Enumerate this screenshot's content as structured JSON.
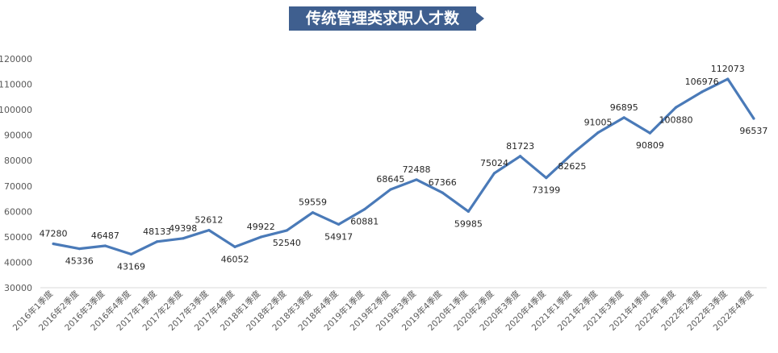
{
  "chart_data": {
    "type": "line",
    "title": "传统管理类求职人才数",
    "xlabel": "",
    "ylabel": "",
    "ylim": [
      30000,
      120000
    ],
    "yticks": [
      30000,
      40000,
      50000,
      60000,
      70000,
      80000,
      90000,
      100000,
      110000,
      120000
    ],
    "grid": false,
    "legend": "none",
    "line_color": "#4a7ab8",
    "categories": [
      "2016年1季度",
      "2016年2季度",
      "2016年3季度",
      "2016年4季度",
      "2017年1季度",
      "2017年2季度",
      "2017年3季度",
      "2017年4季度",
      "2018年1季度",
      "2018年2季度",
      "2018年3季度",
      "2018年4季度",
      "2019年1季度",
      "2019年2季度",
      "2019年3季度",
      "2019年4季度",
      "2020年1季度",
      "2020年2季度",
      "2020年3季度",
      "2020年4季度",
      "2021年1季度",
      "2021年2季度",
      "2021年3季度",
      "2021年4季度",
      "2022年1季度",
      "2022年2季度",
      "2022年3季度",
      "2022年4季度"
    ],
    "series": [
      {
        "values": [
          47280,
          45336,
          46487,
          43169,
          48133,
          49398,
          52612,
          46052,
          49922,
          52540,
          59559,
          54917,
          60881,
          68645,
          72488,
          67366,
          59985,
          75024,
          81723,
          73199,
          82625,
          91005,
          96895,
          90809,
          100880,
          106976,
          112073,
          96537
        ]
      }
    ],
    "label_positions": [
      "above",
      "below",
      "above",
      "below",
      "above",
      "above",
      "above",
      "below",
      "above",
      "below",
      "above",
      "below",
      "below",
      "above",
      "above",
      "above",
      "below",
      "above",
      "above",
      "below",
      "below",
      "above",
      "above",
      "below",
      "below",
      "above",
      "above",
      "below"
    ]
  }
}
